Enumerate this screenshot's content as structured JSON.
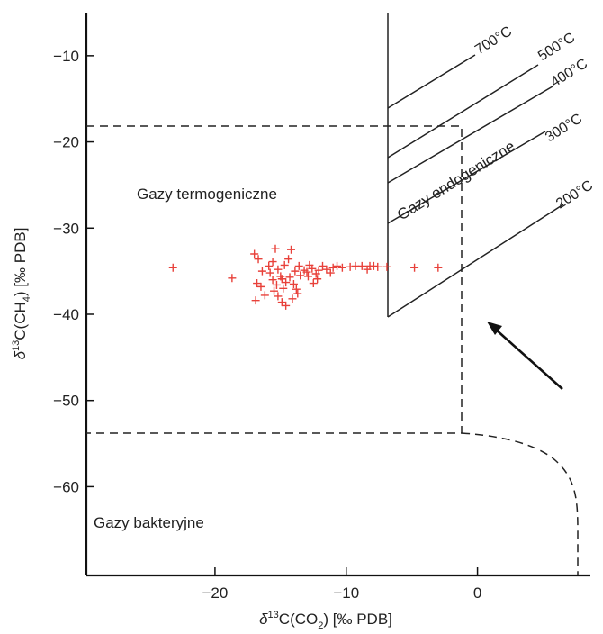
{
  "chart_data": {
    "type": "scatter",
    "xlabel": {
      "prefix": "δ",
      "sup": "13",
      "main": "C(CO",
      "sub": "2",
      "suffix": ") [‰ PDB]"
    },
    "ylabel": {
      "prefix": "δ",
      "sup": "13",
      "main": "C(CH",
      "sub": "4",
      "suffix": ") [‰ PDB]"
    },
    "xlim": [
      -29.8,
      8.6
    ],
    "ylim": [
      -70.3,
      -5
    ],
    "x_ticks": [
      {
        "v": -20,
        "label": "−20"
      },
      {
        "v": -10,
        "label": "−10"
      },
      {
        "v": 0,
        "label": "0"
      }
    ],
    "y_ticks": [
      {
        "v": -10,
        "label": "−10"
      },
      {
        "v": -20,
        "label": "−20"
      },
      {
        "v": -30,
        "label": "−30"
      },
      {
        "v": -40,
        "label": "−40"
      },
      {
        "v": -50,
        "label": "−50"
      },
      {
        "v": -60,
        "label": "−60"
      }
    ],
    "marker_color": "#e8413a",
    "points": [
      [
        -23.2,
        -34.6
      ],
      [
        -18.7,
        -35.8
      ],
      [
        -17.0,
        -33.0
      ],
      [
        -16.7,
        -33.6
      ],
      [
        -16.4,
        -35.0
      ],
      [
        -16.8,
        -36.4
      ],
      [
        -16.2,
        -37.8
      ],
      [
        -16.9,
        -38.4
      ],
      [
        -16.5,
        -36.8
      ],
      [
        -15.9,
        -34.4
      ],
      [
        -15.6,
        -33.9
      ],
      [
        -15.4,
        -32.4
      ],
      [
        -15.8,
        -35.2
      ],
      [
        -15.2,
        -34.8
      ],
      [
        -15.0,
        -35.6
      ],
      [
        -15.6,
        -36.0
      ],
      [
        -15.3,
        -36.6
      ],
      [
        -14.9,
        -35.9
      ],
      [
        -14.6,
        -36.3
      ],
      [
        -14.3,
        -35.7
      ],
      [
        -14.0,
        -36.5
      ],
      [
        -14.7,
        -34.3
      ],
      [
        -14.4,
        -33.6
      ],
      [
        -14.2,
        -32.5
      ],
      [
        -15.5,
        -37.3
      ],
      [
        -14.9,
        -38.6
      ],
      [
        -14.6,
        -39.0
      ],
      [
        -14.1,
        -38.2
      ],
      [
        -13.7,
        -37.6
      ],
      [
        -13.8,
        -37.1
      ],
      [
        -13.5,
        -35.5
      ],
      [
        -13.6,
        -34.4
      ],
      [
        -13.2,
        -34.9
      ],
      [
        -12.8,
        -34.3
      ],
      [
        -12.9,
        -35.6
      ],
      [
        -12.5,
        -36.4
      ],
      [
        -12.6,
        -34.7
      ],
      [
        -12.1,
        -34.9
      ],
      [
        -11.8,
        -34.4
      ],
      [
        -11.5,
        -34.8
      ],
      [
        -11.2,
        -35.2
      ],
      [
        -11.0,
        -34.6
      ],
      [
        -10.7,
        -34.4
      ],
      [
        -10.3,
        -34.6
      ],
      [
        -9.7,
        -34.5
      ],
      [
        -9.3,
        -34.4
      ],
      [
        -8.8,
        -34.4
      ],
      [
        -8.4,
        -34.8
      ],
      [
        -8.2,
        -34.4
      ],
      [
        -7.9,
        -34.4
      ],
      [
        -7.6,
        -34.5
      ],
      [
        -6.9,
        -34.5
      ],
      [
        -4.8,
        -34.6
      ],
      [
        -3.0,
        -34.6
      ],
      [
        -13.0,
        -35.1
      ],
      [
        -12.3,
        -35.3
      ],
      [
        -14.8,
        -37.0
      ],
      [
        -13.9,
        -35.0
      ],
      [
        -15.2,
        -37.9
      ],
      [
        -12.2,
        -35.9
      ]
    ],
    "labels": {
      "thermo": "Gazy termogeniczne",
      "bact": "Gazy bakteryjne",
      "endo": "Gazy endogeniczne"
    },
    "isotherms": [
      "700°C",
      "500°C",
      "400°C",
      "300°C",
      "200°C"
    ]
  }
}
